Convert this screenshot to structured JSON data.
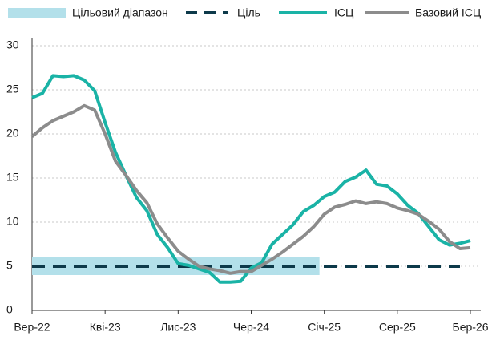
{
  "chart_data": {
    "type": "line",
    "categories": [
      "Вер-22",
      null,
      null,
      null,
      null,
      null,
      null,
      "Кві-23",
      null,
      null,
      null,
      null,
      null,
      null,
      "Лис-23",
      null,
      null,
      null,
      null,
      null,
      null,
      "Чер-24",
      null,
      null,
      null,
      null,
      null,
      null,
      "Січ-25",
      null,
      null,
      null,
      null,
      null,
      null,
      "Сер-25",
      null,
      null,
      null,
      null,
      null,
      null,
      "Бер-26"
    ],
    "series": [
      {
        "name": "Цільовий діапазон",
        "type": "band",
        "color": "#b3e0ea",
        "values": [
          6,
          6,
          6,
          6,
          6,
          6,
          6,
          6,
          6,
          6,
          6,
          6,
          6,
          6,
          6,
          6,
          6,
          6,
          6,
          6,
          6,
          6,
          6,
          6,
          6,
          6,
          6,
          6,
          null,
          null,
          null,
          null,
          null,
          null,
          null,
          null,
          null,
          null,
          null,
          null,
          null,
          null,
          null
        ],
        "lower": [
          4,
          4,
          4,
          4,
          4,
          4,
          4,
          4,
          4,
          4,
          4,
          4,
          4,
          4,
          4,
          4,
          4,
          4,
          4,
          4,
          4,
          4,
          4,
          4,
          4,
          4,
          4,
          4,
          null,
          null,
          null,
          null,
          null,
          null,
          null,
          null,
          null,
          null,
          null,
          null,
          null,
          null,
          null
        ]
      },
      {
        "name": "Ціль",
        "type": "dashed",
        "color": "#0d3a4a",
        "values": [
          5,
          5,
          5,
          5,
          5,
          5,
          5,
          5,
          5,
          5,
          5,
          5,
          5,
          5,
          5,
          5,
          5,
          5,
          5,
          5,
          5,
          5,
          5,
          5,
          5,
          5,
          5,
          5,
          5,
          5,
          5,
          5,
          5,
          5,
          5,
          5,
          5,
          5,
          5,
          5,
          5,
          5,
          null
        ]
      },
      {
        "name": "ІСЦ",
        "type": "line",
        "color": "#1ab3a6",
        "values": [
          24.1,
          24.6,
          26.6,
          26.5,
          26.6,
          26.1,
          24.9,
          21.3,
          17.9,
          15.3,
          12.8,
          11.3,
          8.6,
          7.1,
          5.3,
          5.1,
          4.7,
          4.3,
          3.2,
          3.2,
          3.3,
          4.8,
          5.4,
          7.5,
          8.6,
          9.7,
          11.2,
          11.9,
          12.9,
          13.4,
          14.6,
          15.1,
          15.9,
          14.3,
          14.1,
          13.2,
          11.9,
          11.0,
          9.5,
          8.0,
          7.4,
          7.6,
          7.9
        ]
      },
      {
        "name": "Базовий ІСЦ",
        "type": "line",
        "color": "#8c8c8c",
        "values": [
          19.7,
          20.7,
          21.5,
          22.0,
          22.5,
          23.2,
          22.7,
          20.0,
          16.9,
          15.3,
          13.6,
          12.2,
          9.8,
          8.2,
          6.7,
          5.8,
          5.0,
          4.7,
          4.5,
          4.2,
          4.4,
          4.4,
          5.1,
          5.8,
          6.6,
          7.5,
          8.4,
          9.5,
          10.9,
          11.7,
          12.0,
          12.4,
          12.1,
          12.3,
          12.1,
          11.6,
          11.3,
          10.9,
          10.1,
          9.2,
          7.8,
          7.0,
          7.1
        ]
      }
    ],
    "ylim": [
      0,
      30
    ],
    "yticks": [
      0,
      5,
      10,
      15,
      20,
      25,
      30
    ],
    "grid": true
  }
}
